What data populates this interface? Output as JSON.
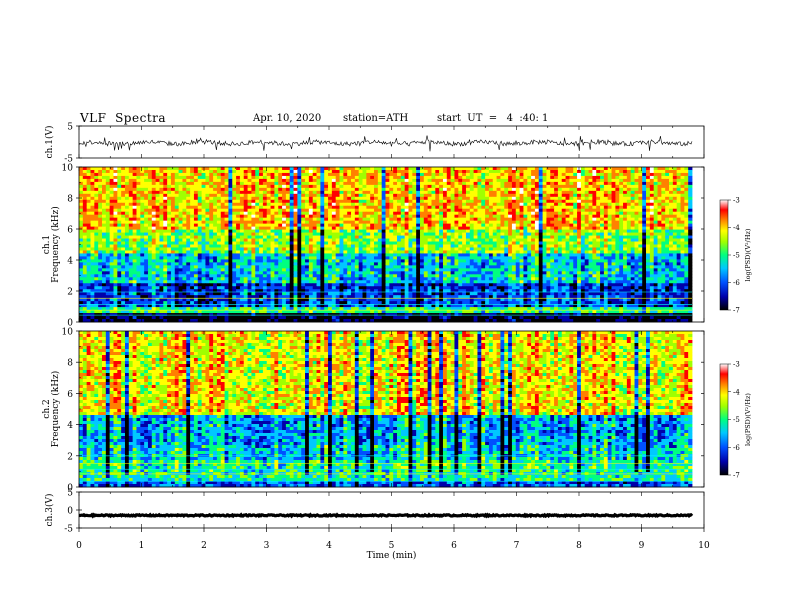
{
  "header": {
    "title": "VLF  Spectra",
    "date": "Apr. 10, 2020",
    "station": "station=ATH",
    "start": "start  UT  =   4  :40: 1"
  },
  "colors": {
    "spectrogram_scale": [
      "#000000",
      "#0000aa",
      "#0050ff",
      "#00c8ff",
      "#00ff80",
      "#a0ff00",
      "#ffff00",
      "#ff8000",
      "#ff0000",
      "#ffffff"
    ]
  },
  "chart_data": [
    {
      "type": "line",
      "panel": "ch1-waveform",
      "ylabel": "ch.1(V)",
      "ylim": [
        -5,
        5
      ],
      "yticks": [
        "5",
        "-5"
      ],
      "xlim": [
        0,
        10
      ],
      "description_values": {
        "baseline": -0.3,
        "amplitude_range": [
          -2.5,
          2.0
        ]
      }
    },
    {
      "type": "heatmap",
      "panel": "ch1-spectrogram",
      "ylabel": "ch.1\nFrequency  (kHz)",
      "ylabel_lines": [
        "ch.1",
        "Frequency  (kHz)"
      ],
      "ylim": [
        0,
        10
      ],
      "yticks": [
        "0",
        "2",
        "4",
        "6",
        "8",
        "10"
      ],
      "xlim": [
        0,
        9.8
      ],
      "colorbar": {
        "label": "log(PSD)(V²/Hz)",
        "range": [
          -7,
          -3
        ],
        "ticks": [
          "-3",
          "-4",
          "-5",
          "-6",
          "-7"
        ]
      },
      "levels": [
        {
          "f_range": [
            0,
            0.5
          ],
          "log_psd": -6.8
        },
        {
          "f_range": [
            0.5,
            1.0
          ],
          "log_psd": -5.2
        },
        {
          "f_range": [
            1.0,
            2.5
          ],
          "log_psd": -6.2
        },
        {
          "f_range": [
            2.5,
            4.5
          ],
          "log_psd": -5.6
        },
        {
          "f_range": [
            4.5,
            6.0
          ],
          "log_psd": -4.9
        },
        {
          "f_range": [
            6.0,
            10.0
          ],
          "log_psd": -4.3
        }
      ]
    },
    {
      "type": "heatmap",
      "panel": "ch2-spectrogram",
      "ylabel": "ch.2\nFrequency  (kHz)",
      "ylabel_lines": [
        "ch.2",
        "Frequency  (kHz)"
      ],
      "ylim": [
        0,
        10
      ],
      "yticks": [
        "0",
        "2",
        "4",
        "6",
        "8",
        "10"
      ],
      "xlim": [
        0,
        9.8
      ],
      "colorbar": {
        "label": "log(PSD)(V²/Hz)",
        "range": [
          -7,
          -3
        ],
        "ticks": [
          "-3",
          "-4",
          "-5",
          "-6",
          "-7"
        ]
      },
      "levels": [
        {
          "f_range": [
            0,
            0.3
          ],
          "log_psd": -6.0
        },
        {
          "f_range": [
            0.3,
            1.8
          ],
          "log_psd": -5.3
        },
        {
          "f_range": [
            1.8,
            2.6
          ],
          "log_psd": -5.6
        },
        {
          "f_range": [
            2.6,
            4.6
          ],
          "log_psd": -5.8
        },
        {
          "f_range": [
            4.6,
            10.0
          ],
          "log_psd": -4.5
        }
      ]
    },
    {
      "type": "line",
      "panel": "ch3-waveform",
      "ylabel": "ch.3(V)",
      "ylim": [
        -5,
        5
      ],
      "yticks": [
        "5",
        "0",
        "-5"
      ],
      "xlim": [
        0,
        10
      ],
      "xlabel": "Time  (min)",
      "xticks": [
        "0",
        "1",
        "2",
        "3",
        "4",
        "5",
        "6",
        "7",
        "8",
        "9",
        "10"
      ],
      "description_values": {
        "baseline": -1.5,
        "amplitude_range": [
          -1.8,
          -1.2
        ]
      }
    }
  ]
}
